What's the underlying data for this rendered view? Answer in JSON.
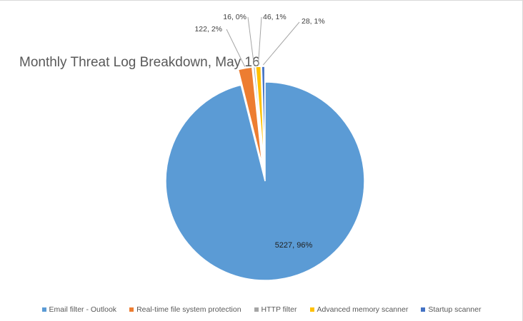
{
  "chart_data": {
    "type": "pie",
    "title": "Monthly Threat Log Breakdown, May 16",
    "legend_position": "bottom",
    "exploded": true,
    "categories": [
      "Email filter - Outlook",
      "Real-time file system protection",
      "HTTP filter",
      "Advanced memory scanner",
      "Startup scanner"
    ],
    "values": [
      5227,
      122,
      16,
      46,
      28
    ],
    "percent_labels": [
      "96%",
      "2%",
      "0%",
      "1%",
      "1%"
    ],
    "data_labels": [
      "5227, 96%",
      "122, 2%",
      "16, 0%",
      "46, 1%",
      "28, 1%"
    ],
    "colors": [
      "#5b9bd5",
      "#ed7d31",
      "#a5a5a5",
      "#ffc000",
      "#4472c4"
    ]
  }
}
